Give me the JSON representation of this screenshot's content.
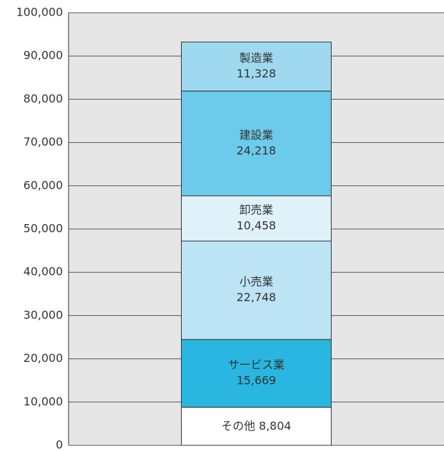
{
  "chart_data": {
    "type": "bar",
    "stacked": true,
    "categories": [
      null
    ],
    "series": [
      {
        "name": "その他",
        "color": "#ffffff",
        "values": [
          8804
        ],
        "value_labels": [
          "8,804"
        ]
      },
      {
        "name": "サービス業",
        "color": "#29b6e0",
        "values": [
          15669
        ],
        "value_labels": [
          "15,669"
        ]
      },
      {
        "name": "小売業",
        "color": "#bde4f4",
        "values": [
          22748
        ],
        "value_labels": [
          "22,748"
        ]
      },
      {
        "name": "卸売業",
        "color": "#dff1f9",
        "values": [
          10458
        ],
        "value_labels": [
          "10,458"
        ]
      },
      {
        "name": "建設業",
        "color": "#6ccbea",
        "values": [
          24218
        ],
        "value_labels": [
          "24,218"
        ]
      },
      {
        "name": "製造業",
        "color": "#9fd9f0",
        "values": [
          11328
        ],
        "value_labels": [
          "11,328"
        ]
      }
    ],
    "ylim": [
      0,
      100000
    ],
    "yticks": [
      0,
      {
        "value": 10000,
        "label": "10,000"
      },
      {
        "value": 20000,
        "label": "20,000"
      },
      {
        "value": 30000,
        "label": "30,000"
      },
      {
        "value": 40000,
        "label": "40,000"
      },
      {
        "value": 50000,
        "label": "50,000"
      },
      {
        "value": 60000,
        "label": "60,000"
      },
      {
        "value": 70000,
        "label": "70,000"
      },
      {
        "value": 80000,
        "label": "80,000"
      },
      {
        "value": 90000,
        "label": "90,000"
      },
      {
        "value": 100000,
        "label": "100,000"
      }
    ],
    "grid": true
  }
}
